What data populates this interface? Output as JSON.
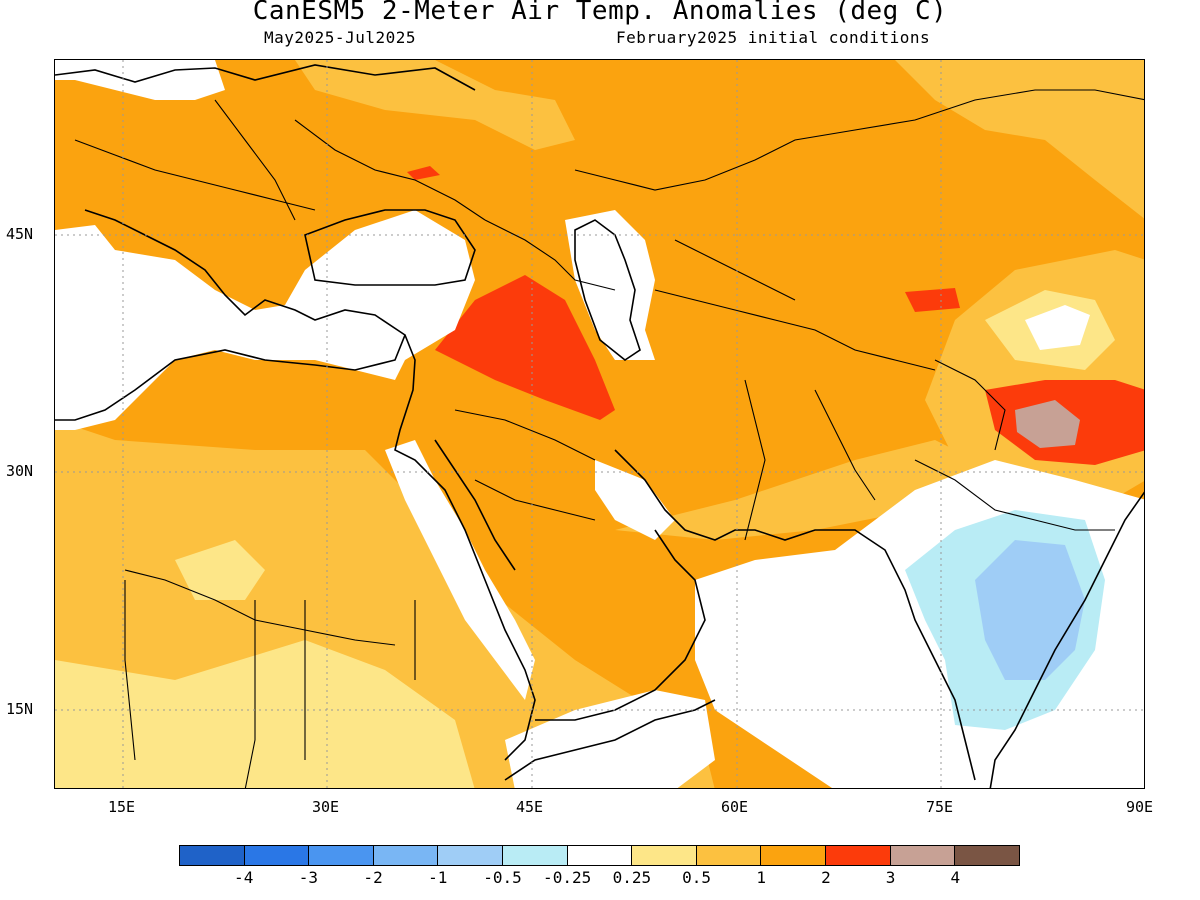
{
  "title": "CanESM5 2-Meter Air Temp. Anomalies (deg C)",
  "subtitle_left": "May2025-Jul2025",
  "subtitle_right": "February2025 initial conditions",
  "lat_labels": [
    "45N",
    "30N",
    "15N"
  ],
  "lon_labels": [
    "15E",
    "30E",
    "45E",
    "60E",
    "75E",
    "90E"
  ],
  "colorbar": {
    "colors": [
      "#1f62c8",
      "#2a77e6",
      "#4a95f0",
      "#79b6f4",
      "#9fcdf6",
      "#b9ecf5",
      "#ffffff",
      "#fde688",
      "#fcc140",
      "#fba30f",
      "#fc3b0b",
      "#c7a195",
      "#7a5544"
    ],
    "labels": [
      "-4",
      "-3",
      "-2",
      "-1",
      "-0.5",
      "-0.25",
      "0.25",
      "0.5",
      "1",
      "2",
      "3",
      "4"
    ]
  },
  "map_data": {
    "lon_range": [
      10,
      90
    ],
    "lat_range": [
      10,
      52
    ],
    "grid_lines": "dotted"
  }
}
